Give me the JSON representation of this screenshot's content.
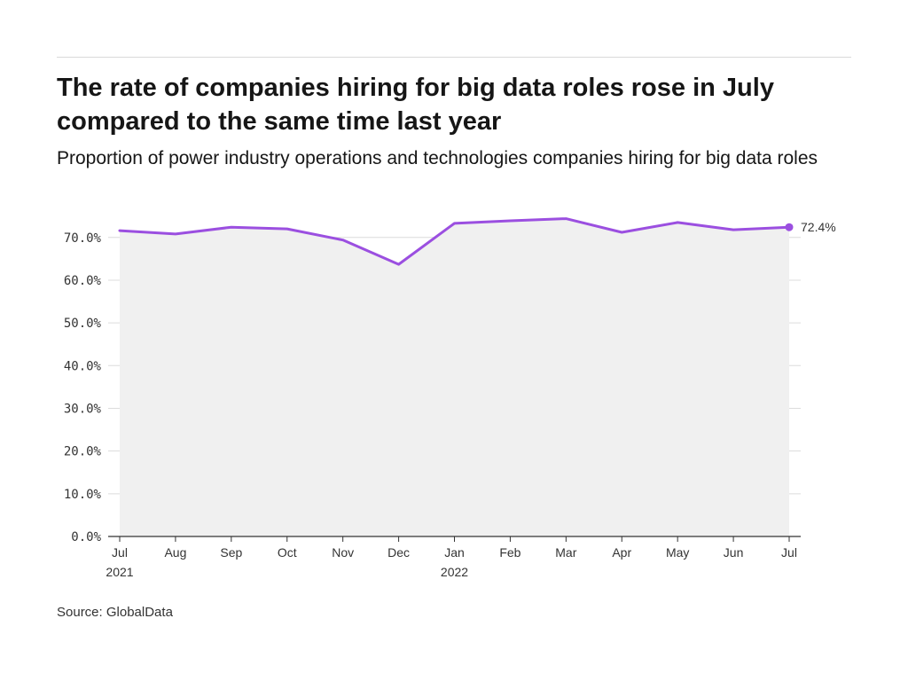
{
  "header": {
    "title": "The rate of companies hiring for big data roles rose in July compared to the same time last year",
    "subtitle": "Proportion of power industry operations and technologies companies hiring for big data roles"
  },
  "footer": {
    "source": "Source: GlobalData"
  },
  "colors": {
    "line": "#9b4fe0",
    "area": "#f0f0f0",
    "grid": "#dcdcdc",
    "axis": "#333333"
  },
  "chart_data": {
    "type": "area",
    "title": "The rate of companies hiring for big data roles rose in July compared to the same time last year",
    "subtitle": "Proportion of power industry operations and technologies companies hiring for big data roles",
    "categories": [
      "Jul 2021",
      "Aug",
      "Sep",
      "Oct",
      "Nov",
      "Dec",
      "Jan 2022",
      "Feb",
      "Mar",
      "Apr",
      "May",
      "Jun",
      "Jul"
    ],
    "x_tick_labels": [
      [
        "Jul",
        "2021"
      ],
      [
        "Aug"
      ],
      [
        "Sep"
      ],
      [
        "Oct"
      ],
      [
        "Nov"
      ],
      [
        "Dec"
      ],
      [
        "Jan",
        "2022"
      ],
      [
        "Feb"
      ],
      [
        "Mar"
      ],
      [
        "Apr"
      ],
      [
        "May"
      ],
      [
        "Jun"
      ],
      [
        "Jul"
      ]
    ],
    "values": [
      71.6,
      70.8,
      72.4,
      72.0,
      69.4,
      63.7,
      73.3,
      73.9,
      74.4,
      71.2,
      73.5,
      71.8,
      72.4
    ],
    "end_label": "72.4%",
    "y_ticks": [
      "0.0%",
      "10.0%",
      "20.0%",
      "30.0%",
      "40.0%",
      "50.0%",
      "60.0%",
      "70.0%"
    ],
    "y_tick_values": [
      0,
      10,
      20,
      30,
      40,
      50,
      60,
      70
    ],
    "ylim": [
      0,
      80
    ],
    "xlabel": "",
    "ylabel": "",
    "grid": true
  }
}
